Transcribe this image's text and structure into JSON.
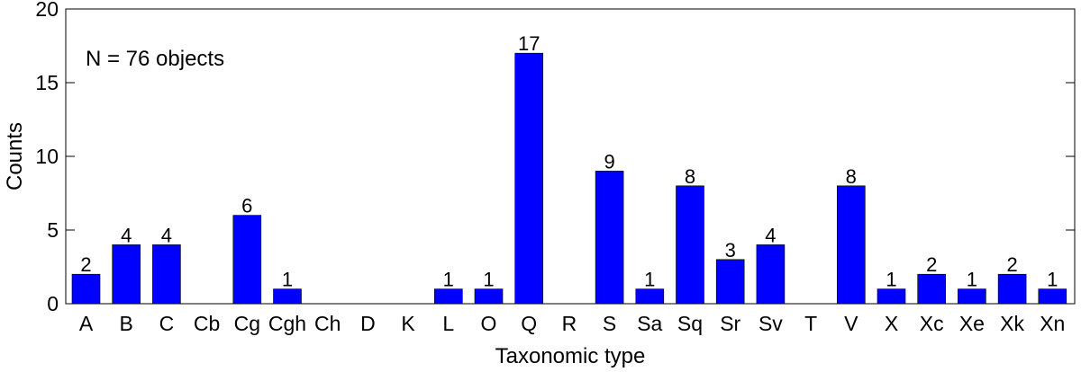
{
  "chart_data": {
    "type": "bar",
    "title": "",
    "annotation": "N = 76 objects",
    "xlabel": "Taxonomic type",
    "ylabel": "Counts",
    "ylim": [
      0,
      20
    ],
    "yticks": [
      0,
      5,
      10,
      15,
      20
    ],
    "grid": false,
    "bar_color": "#0000ff",
    "categories": [
      "A",
      "B",
      "C",
      "Cb",
      "Cg",
      "Cgh",
      "Ch",
      "D",
      "K",
      "L",
      "O",
      "Q",
      "R",
      "S",
      "Sa",
      "Sq",
      "Sr",
      "Sv",
      "T",
      "V",
      "X",
      "Xc",
      "Xe",
      "Xk",
      "Xn"
    ],
    "values": [
      2,
      4,
      4,
      0,
      6,
      1,
      0,
      0,
      0,
      1,
      1,
      17,
      0,
      9,
      1,
      8,
      3,
      4,
      0,
      8,
      1,
      2,
      1,
      2,
      1
    ]
  }
}
